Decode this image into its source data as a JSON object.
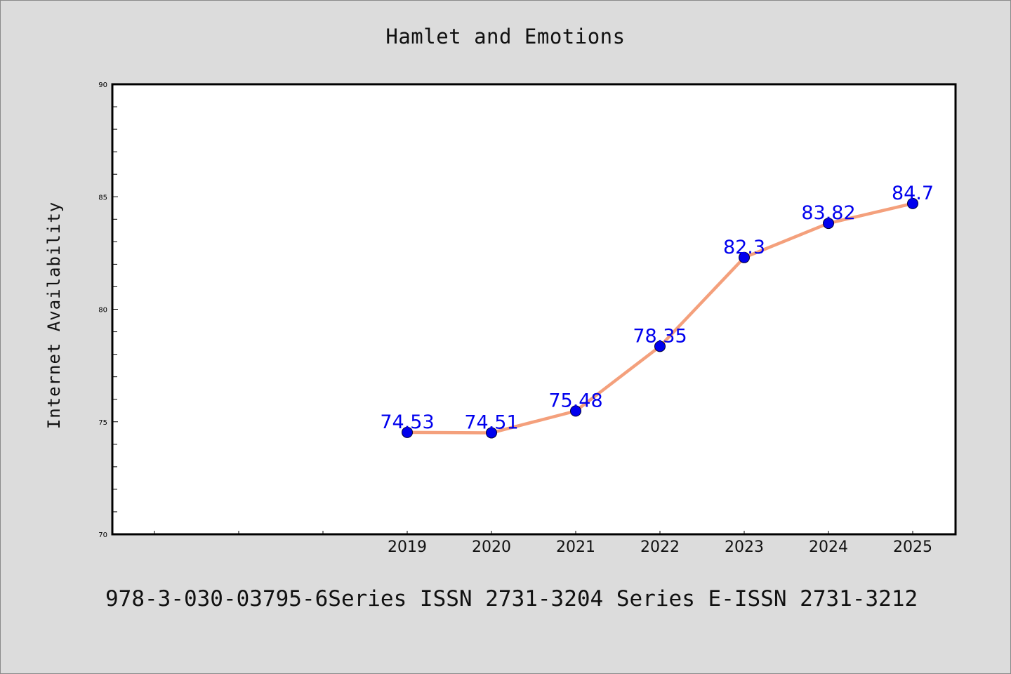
{
  "chart_data": {
    "type": "line",
    "title": "Hamlet and Emotions",
    "xlabel": "",
    "ylabel": "Internet Availability",
    "categories": [
      "2019",
      "2020",
      "2021",
      "2022",
      "2023",
      "2024",
      "2025"
    ],
    "series": [
      {
        "values": [
          74.53,
          74.51,
          75.48,
          78.35,
          82.3,
          83.82,
          84.7
        ],
        "labels": [
          "74.53",
          "74.51",
          "75.48",
          "78.35",
          "82.3",
          "83.82",
          "84.7"
        ],
        "line_color": "#f4a07c",
        "marker_color": "#0000ee"
      }
    ],
    "ylim": [
      70,
      90
    ],
    "yticks": [
      "70",
      "75",
      "80",
      "85",
      "90"
    ],
    "grid": false,
    "legend": "none"
  },
  "footer": {
    "text": "978-3-030-03795-6Series ISSN 2731-3204 Series E-ISSN 2731-3212"
  }
}
